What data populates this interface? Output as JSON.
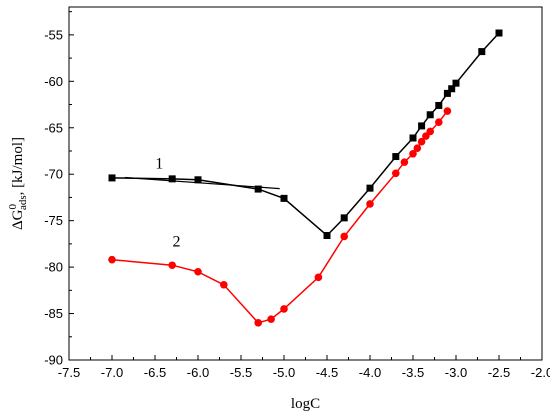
{
  "chart_data": {
    "type": "line",
    "title": "",
    "xlabel": "logC",
    "ylabel": "ΔG0ads, [kJ/mol]",
    "ylabel_parts": {
      "symbol": "ΔG",
      "superscript": "0",
      "subscript": "ads",
      "unit": ", [kJ/mol]"
    },
    "xlim": [
      -7.5,
      -2.0
    ],
    "ylim": [
      -90,
      -52
    ],
    "x_ticks": [
      "-7.5",
      "-7.0",
      "-6.5",
      "-6.0",
      "-5.5",
      "-5.0",
      "-4.5",
      "-4.0",
      "-3.5",
      "-3.0",
      "-2.5",
      "-2.0"
    ],
    "x_tick_values": [
      -7.5,
      -7.0,
      -6.5,
      -6.0,
      -5.5,
      -5.0,
      -4.5,
      -4.0,
      -3.5,
      -3.0,
      -2.5,
      -2.0
    ],
    "y_ticks": [
      "-55",
      "-60",
      "-65",
      "-70",
      "-75",
      "-80",
      "-85",
      "-90"
    ],
    "y_tick_values": [
      -55,
      -60,
      -65,
      -70,
      -75,
      -80,
      -85,
      -90
    ],
    "grid": false,
    "legend": "none",
    "series": [
      {
        "name": "1",
        "color": "#000000",
        "marker": "square",
        "label_text": "1",
        "label_at": [
          -6.45,
          -69.4
        ],
        "label_line": [
          [
            -6.85,
            -70.35
          ],
          [
            -5.05,
            -71.55
          ]
        ],
        "x": [
          -7.0,
          -6.3,
          -6.0,
          -5.3,
          -5.0,
          -4.5,
          -4.3,
          -4.0,
          -3.7,
          -3.5,
          -3.4,
          -3.3,
          -3.2,
          -3.1,
          -3.05,
          -3.0,
          -2.7,
          -2.5
        ],
        "y": [
          -70.4,
          -70.5,
          -70.6,
          -71.6,
          -72.6,
          -76.6,
          -74.7,
          -71.5,
          -68.1,
          -66.1,
          -64.8,
          -63.6,
          -62.6,
          -61.3,
          -60.8,
          -60.2,
          -56.8,
          -54.8
        ]
      },
      {
        "name": "2",
        "color": "#ff0000",
        "marker": "circle",
        "label_text": "2",
        "label_at": [
          -6.25,
          -77.8
        ],
        "x": [
          -7.0,
          -6.3,
          -6.0,
          -5.7,
          -5.3,
          -5.15,
          -5.0,
          -4.6,
          -4.3,
          -4.0,
          -3.7,
          -3.6,
          -3.5,
          -3.45,
          -3.4,
          -3.35,
          -3.3,
          -3.2,
          -3.1
        ],
        "y": [
          -79.2,
          -79.8,
          -80.5,
          -81.9,
          -86.0,
          -85.6,
          -84.5,
          -81.1,
          -76.7,
          -73.2,
          -69.9,
          -68.7,
          -67.8,
          -67.2,
          -66.5,
          -65.9,
          -65.4,
          -64.4,
          -63.2
        ]
      }
    ]
  }
}
